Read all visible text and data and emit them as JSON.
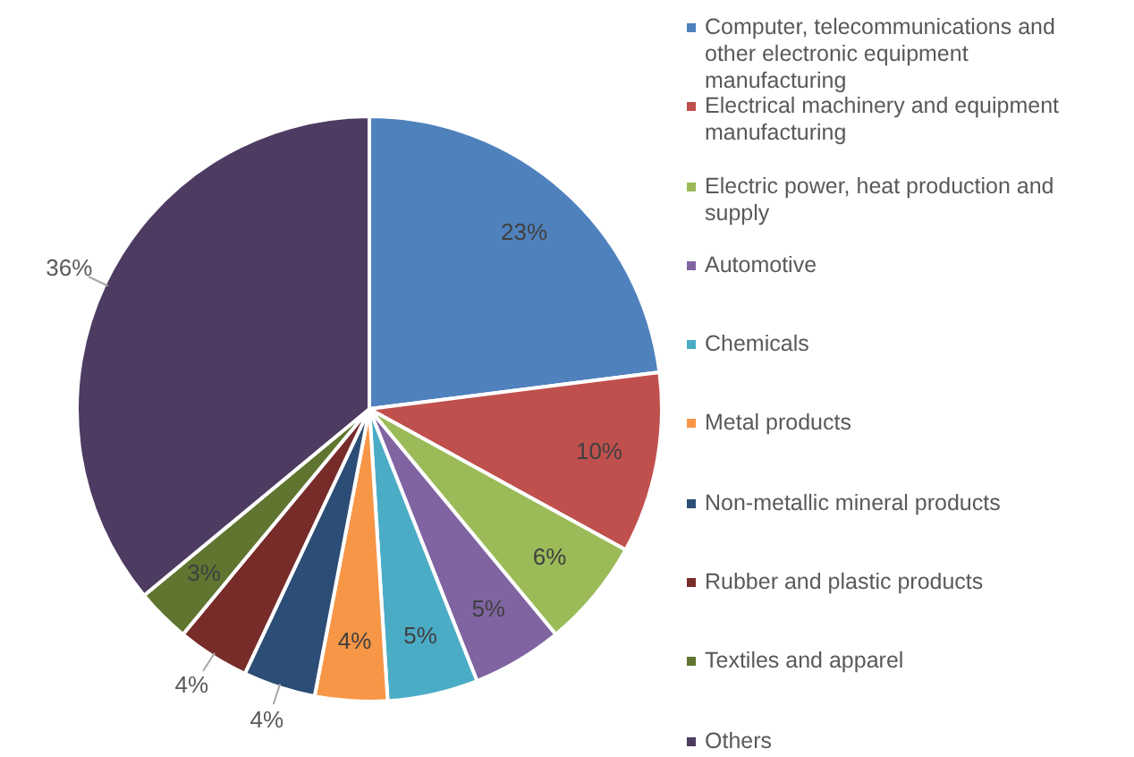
{
  "chart_data": {
    "type": "pie",
    "categories": [
      "Computer, telecommunications and other electronic equipment manufacturing",
      "Electrical machinery and equipment manufacturing",
      "Electric power, heat production and supply",
      "Automotive",
      "Chemicals",
      "Metal products",
      "Non-metallic mineral products",
      "Rubber and plastic products",
      "Textiles and apparel",
      "Others"
    ],
    "values": [
      23,
      10,
      6,
      5,
      5,
      4,
      4,
      4,
      3,
      36
    ],
    "colors": [
      "#4f81bd",
      "#c0504d",
      "#9bbb59",
      "#8064a2",
      "#4bacc6",
      "#f79646",
      "#2c4d75",
      "#772c2a",
      "#5f7530",
      "#4d3b62"
    ],
    "value_labels": [
      "23%",
      "10%",
      "6%",
      "5%",
      "5%",
      "4%",
      "4%",
      "4%",
      "3%",
      "36%"
    ],
    "legend": "right"
  }
}
